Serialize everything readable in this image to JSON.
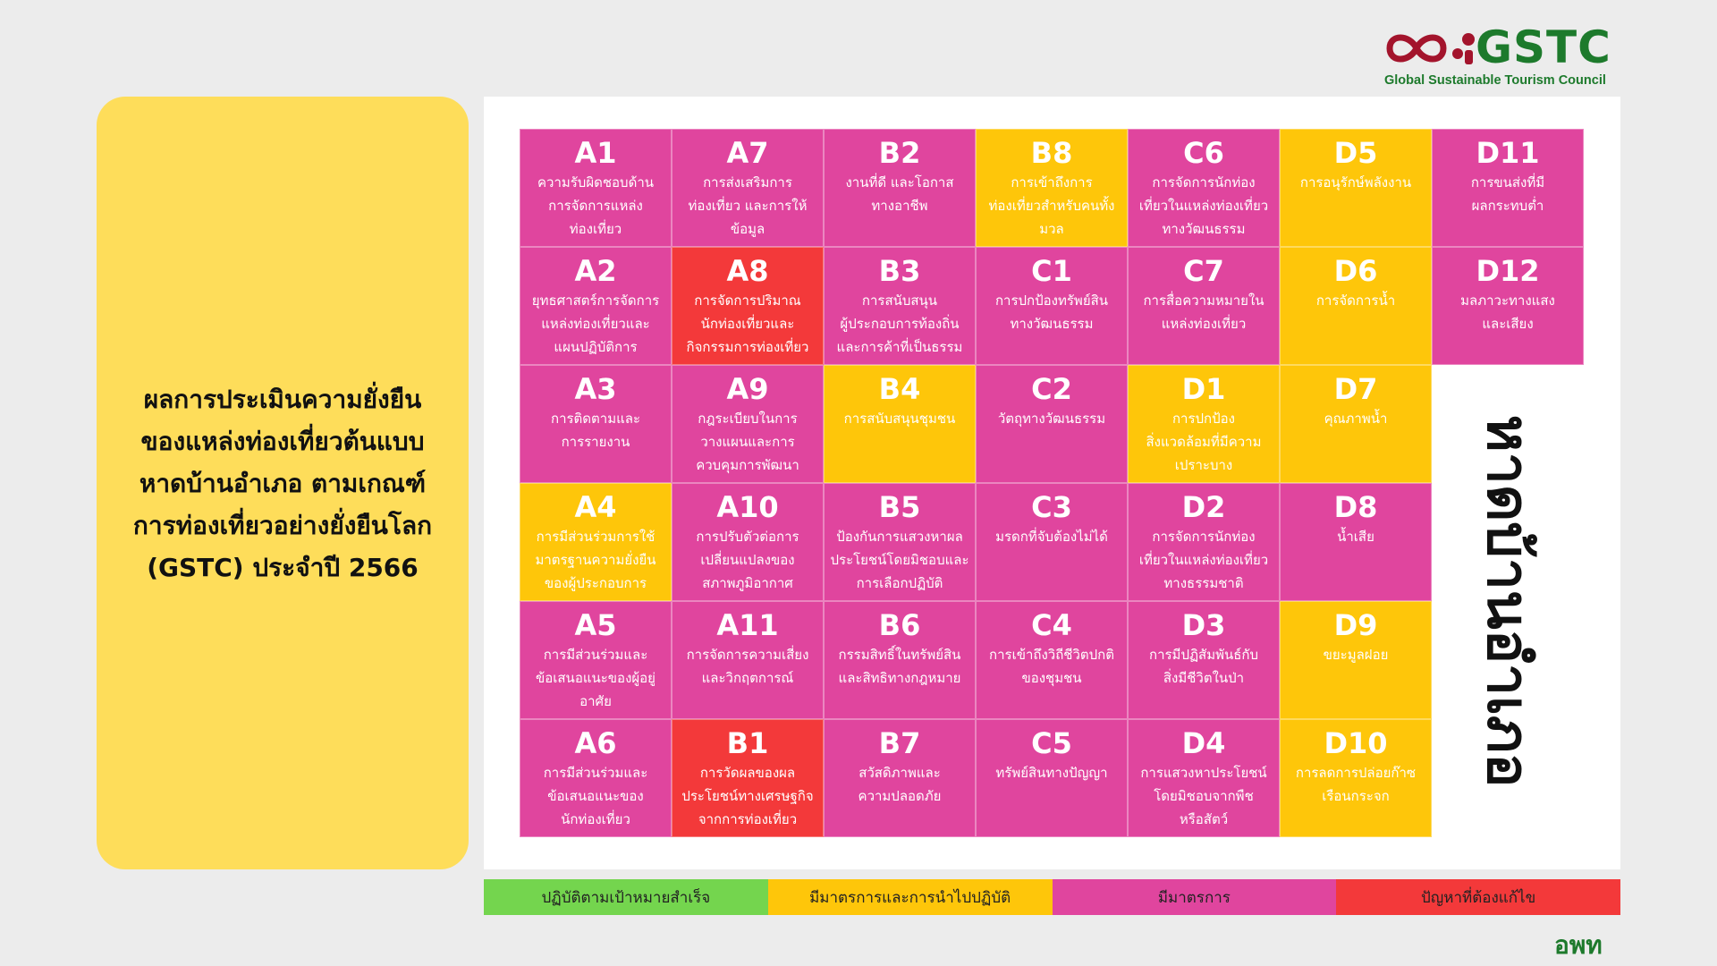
{
  "logo": {
    "wordmark": "GSTC",
    "subtitle": "Global Sustainable Tourism Council",
    "colors": {
      "mark": "#a3142c",
      "text": "#1d7a2c"
    }
  },
  "title": "ผลการประเมินความยั่งยืน\nของแหล่งท่องเที่ยวต้นแบบ\nหาดบ้านอำเภอ ตามเกณฑ์\nการท่องเที่ยวอย่างยั่งยืนโลก\n(GSTC) ประจำปี 2566",
  "vertical_label": "หาดบ้านอำเภอ",
  "colors": {
    "pink": "#e0459e",
    "yellow": "#fec60a",
    "red": "#f3393a",
    "green": "#74d54e"
  },
  "grid": [
    {
      "code": "A1",
      "desc": "ความรับผิดชอบด้าน\nการจัดการแหล่ง\nท่องเที่ยว",
      "status": "pink"
    },
    {
      "code": "A7",
      "desc": "การส่งเสริมการ\nท่องเที่ยว และการให้\nข้อมูล",
      "status": "pink"
    },
    {
      "code": "B2",
      "desc": "งานที่ดี และโอกาส\nทางอาชีพ",
      "status": "pink"
    },
    {
      "code": "B8",
      "desc": "การเข้าถึงการ\nท่องเที่ยวสำหรับคนทั้ง\nมวล",
      "status": "yellow"
    },
    {
      "code": "C6",
      "desc": "การจัดการนักท่อง\nเที่ยวในแหล่งท่องเที่ยว\nทางวัฒนธรรม",
      "status": "pink"
    },
    {
      "code": "D5",
      "desc": "การอนุรักษ์พลังงาน",
      "status": "yellow"
    },
    {
      "code": "D11",
      "desc": "การขนส่งที่มี\nผลกระทบต่ำ",
      "status": "pink"
    },
    {
      "code": "A2",
      "desc": "ยุทธศาสตร์การจัดการ\nแหล่งท่องเที่ยวและ\nแผนปฏิบัติการ",
      "status": "pink"
    },
    {
      "code": "A8",
      "desc": "การจัดการปริมาณ\nนักท่องเที่ยวและ\nกิจกรรมการท่องเที่ยว",
      "status": "red"
    },
    {
      "code": "B3",
      "desc": "การสนับสนุน\nผู้ประกอบการท้องถิ่น\nและการค้าที่เป็นธรรม",
      "status": "pink"
    },
    {
      "code": "C1",
      "desc": "การปกป้องทรัพย์สิน\nทางวัฒนธรรม",
      "status": "pink"
    },
    {
      "code": "C7",
      "desc": "การสื่อความหมายใน\nแหล่งท่องเที่ยว",
      "status": "pink"
    },
    {
      "code": "D6",
      "desc": "การจัดการน้ำ",
      "status": "yellow"
    },
    {
      "code": "D12",
      "desc": "มลภาวะทางแสง\nและเสียง",
      "status": "pink"
    },
    {
      "code": "A3",
      "desc": "การติดตามและ\nการรายงาน",
      "status": "pink"
    },
    {
      "code": "A9",
      "desc": "กฎระเบียบในการ\nวางแผนและการ\nควบคุมการพัฒนา",
      "status": "pink"
    },
    {
      "code": "B4",
      "desc": "การสนับสนุนชุมชน",
      "status": "yellow"
    },
    {
      "code": "C2",
      "desc": "วัตถุทางวัฒนธรรม",
      "status": "pink"
    },
    {
      "code": "D1",
      "desc": "การปกป้อง\nสิ่งแวดล้อมที่มีความ\nเปราะบาง",
      "status": "yellow"
    },
    {
      "code": "D7",
      "desc": "คุณภาพน้ำ",
      "status": "yellow"
    },
    {
      "code": "",
      "desc": "",
      "status": "blank"
    },
    {
      "code": "A4",
      "desc": "การมีส่วนร่วมการใช้\nมาตรฐานความยั่งยืน\nของผู้ประกอบการ",
      "status": "yellow"
    },
    {
      "code": "A10",
      "desc": "การปรับตัวต่อการ\nเปลี่ยนแปลงของ\nสภาพภูมิอากาศ",
      "status": "pink"
    },
    {
      "code": "B5",
      "desc": "ป้องกันการแสวงหาผล\nประโยชน์โดยมิชอบและ\nการเลือกปฏิบัติ",
      "status": "pink"
    },
    {
      "code": "C3",
      "desc": "มรดกที่จับต้องไม่ได้",
      "status": "pink"
    },
    {
      "code": "D2",
      "desc": "การจัดการนักท่อง\nเที่ยวในแหล่งท่องเที่ยว\nทางธรรมชาติ",
      "status": "pink"
    },
    {
      "code": "D8",
      "desc": "น้ำเสีย",
      "status": "pink"
    },
    {
      "code": "",
      "desc": "",
      "status": "blank"
    },
    {
      "code": "A5",
      "desc": "การมีส่วนร่วมและ\nข้อเสนอแนะของผู้อยู่\nอาศัย",
      "status": "pink"
    },
    {
      "code": "A11",
      "desc": "การจัดการความเสี่ยง\nและวิกฤตการณ์",
      "status": "pink"
    },
    {
      "code": "B6",
      "desc": "กรรมสิทธิ์ในทรัพย์สิน\nและสิทธิทางกฎหมาย",
      "status": "pink"
    },
    {
      "code": "C4",
      "desc": "การเข้าถึงวิถีชีวิตปกติ\nของชุมชน",
      "status": "pink"
    },
    {
      "code": "D3",
      "desc": "การมีปฏิสัมพันธ์กับ\nสิ่งมีชีวิตในป่า",
      "status": "pink"
    },
    {
      "code": "D9",
      "desc": "ขยะมูลฝอย",
      "status": "yellow"
    },
    {
      "code": "",
      "desc": "",
      "status": "blank"
    },
    {
      "code": "A6",
      "desc": "การมีส่วนร่วมและ\nข้อเสนอแนะของ\nนักท่องเที่ยว",
      "status": "pink"
    },
    {
      "code": "B1",
      "desc": "การวัดผลของผล\nประโยชน์ทางเศรษฐกิจ\nจากการท่องเที่ยว",
      "status": "red"
    },
    {
      "code": "B7",
      "desc": "สวัสดิภาพและ\nความปลอดภัย",
      "status": "pink"
    },
    {
      "code": "C5",
      "desc": "ทรัพย์สินทางปัญญา",
      "status": "pink"
    },
    {
      "code": "D4",
      "desc": "การแสวงหาประโยชน์\nโดยมิชอบจากพืช\nหรือสัตว์",
      "status": "pink"
    },
    {
      "code": "D10",
      "desc": "การลดการปล่อยก๊าซ\nเรือนกระจก",
      "status": "yellow"
    },
    {
      "code": "",
      "desc": "",
      "status": "blank"
    }
  ],
  "legend": [
    {
      "label": "ปฏิบัติตามเป้าหมายสำเร็จ",
      "status": "green"
    },
    {
      "label": "มีมาตรการและการนำไปปฏิบัติ",
      "status": "yellow"
    },
    {
      "label": "มีมาตรการ",
      "status": "pink"
    },
    {
      "label": "ปัญหาที่ต้องแก้ไข",
      "status": "red"
    }
  ],
  "brand_mark": "อพท"
}
